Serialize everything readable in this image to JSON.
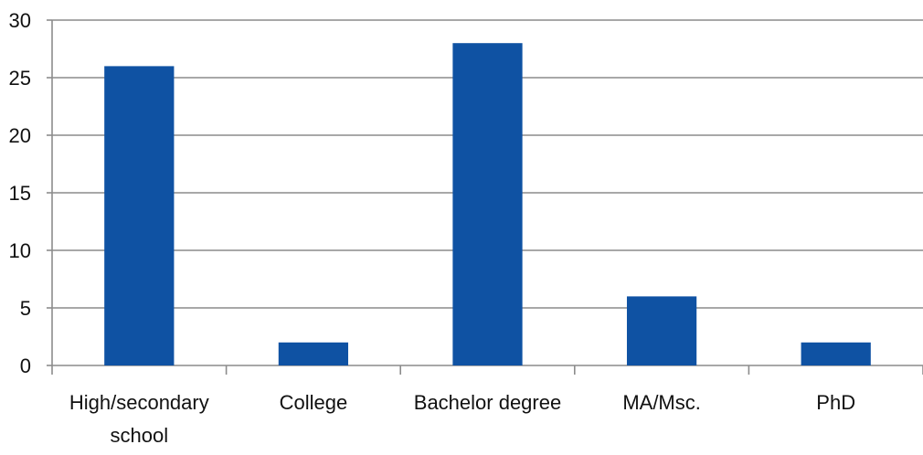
{
  "chart_data": {
    "type": "bar",
    "title": "",
    "xlabel": "",
    "ylabel": "",
    "categories": [
      [
        "High/secondary",
        "school"
      ],
      [
        "College"
      ],
      [
        "Bachelor degree"
      ],
      [
        "MA/Msc."
      ],
      [
        "PhD"
      ]
    ],
    "values": [
      26,
      2,
      28,
      6,
      2
    ],
    "ylim": [
      0,
      30
    ],
    "yticks": [
      "0",
      "5",
      "10",
      "15",
      "20",
      "25",
      "30"
    ],
    "grid": true,
    "bar_color": "#0f52a3",
    "grid_color": "#8c8c8c"
  }
}
